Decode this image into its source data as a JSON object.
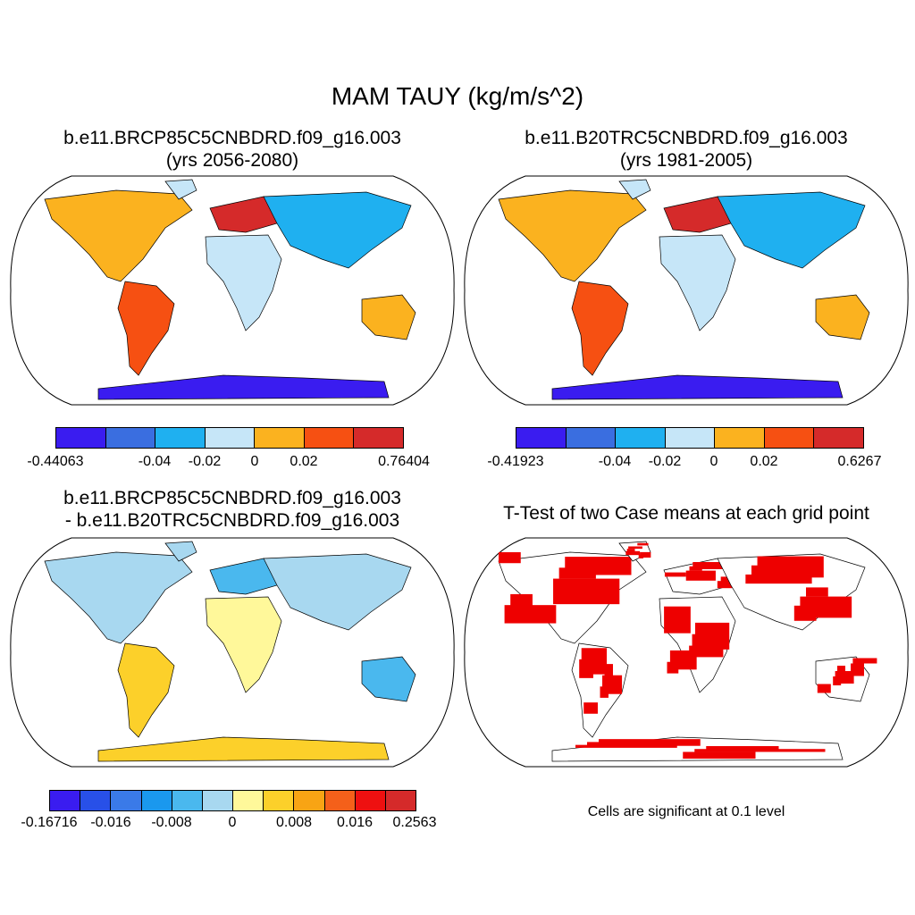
{
  "title": "MAM TAUY (kg/m/s^2)",
  "panels": [
    {
      "id": "p1",
      "title1": "b.e11.BRCP85C5CNBDRD.f09_g16.003",
      "title2": "(yrs 2056-2080)"
    },
    {
      "id": "p2",
      "title1": "b.e11.B20TRC5CNBDRD.f09_g16.003",
      "title2": "(yrs 1981-2005)"
    },
    {
      "id": "p3",
      "title1": "b.e11.BRCP85C5CNBDRD.f09_g16.003",
      "title2": "- b.e11.B20TRC5CNBDRD.f09_g16.003"
    },
    {
      "id": "p4",
      "title1": "T-Test of two Case means at each grid point",
      "title2": ""
    }
  ],
  "colorbars": {
    "cb1": {
      "colors": [
        "#3a1cf0",
        "#3a6ee0",
        "#1fb0f0",
        "#c6e6f8",
        "#fbb21f",
        "#f65012",
        "#d52a2a"
      ],
      "labels": [
        "-0.44063",
        "-0.04",
        "-0.02",
        "0",
        "0.02",
        "0.76404"
      ]
    },
    "cb2": {
      "colors": [
        "#3a1cf0",
        "#3a6ee0",
        "#1fb0f0",
        "#c6e6f8",
        "#fbb21f",
        "#f65012",
        "#d52a2a"
      ],
      "labels": [
        "-0.41923",
        "-0.04",
        "-0.02",
        "0",
        "0.02",
        "0.6267"
      ]
    },
    "cb3": {
      "colors": [
        "#3a1cf0",
        "#2850e8",
        "#3a7ae8",
        "#1a98ee",
        "#4ab8ee",
        "#a8d8f0",
        "#fff89a",
        "#fcd02a",
        "#f8a414",
        "#f4601a",
        "#ee1010",
        "#d52a2a"
      ],
      "labels": [
        "-0.16716",
        "-0.016",
        "-0.008",
        "0",
        "0.008",
        "0.016",
        "0.2563"
      ]
    }
  },
  "significance_color": "#ee0000",
  "note": "Cells are significant at 0.1 level"
}
